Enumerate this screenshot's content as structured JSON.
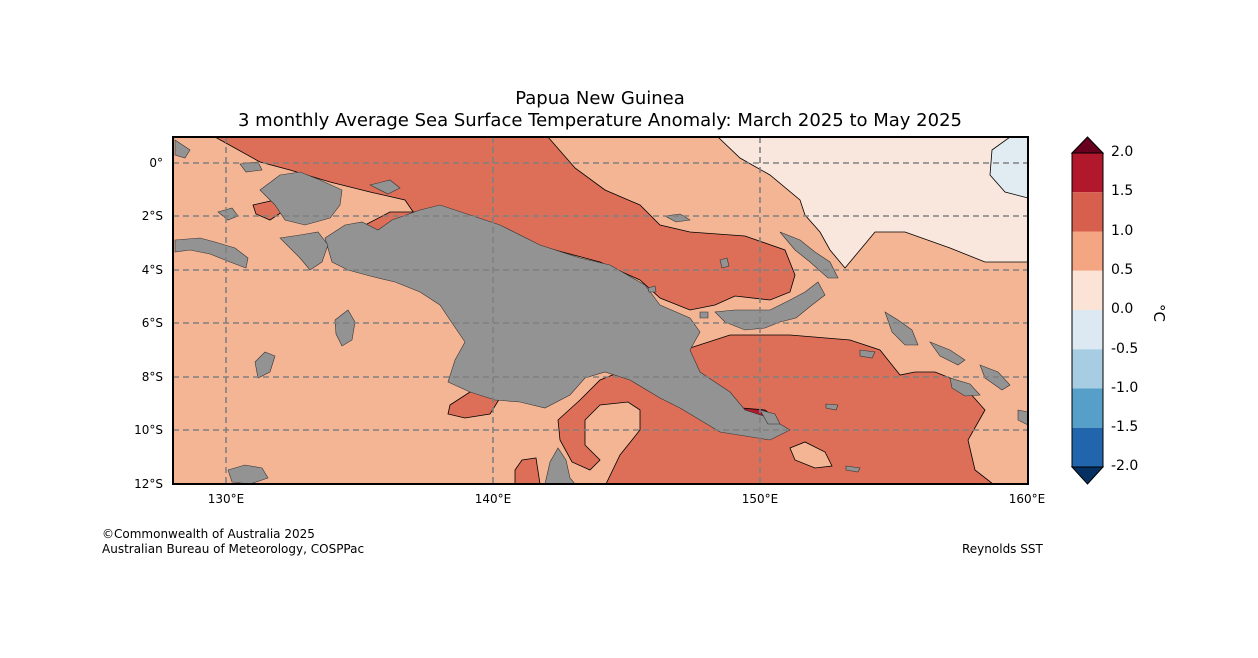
{
  "title": {
    "line1": "Papua New Guinea",
    "line2": "3 monthly Average Sea Surface Temperature Anomaly: March 2025 to May 2025"
  },
  "axes": {
    "latitude_ticks": [
      "0°",
      "2°S",
      "4°S",
      "6°S",
      "8°S",
      "10°S",
      "12°S"
    ],
    "longitude_ticks": [
      "130°E",
      "140°E",
      "150°E",
      "160°E"
    ]
  },
  "colorbar": {
    "unit": "°C",
    "ticks": [
      "2.0",
      "1.5",
      "1.0",
      "0.5",
      "0.0",
      "-0.5",
      "-1.0",
      "-1.5",
      "-2.0"
    ],
    "colors": {
      "above_2_0": "#67001f",
      "1_5_to_2_0": "#b2182b",
      "1_0_to_1_5": "#d6604d",
      "0_5_to_1_0": "#f4a582",
      "0_0_to_0_5": "#fbe3d6",
      "m0_5_to_0_0": "#dce9f2",
      "m1_0_to_m0_5": "#a6cde2",
      "m1_5_to_m1_0": "#569fc9",
      "m2_0_to_m1_5": "#2166ac",
      "below_m2_0": "#053061"
    }
  },
  "map_colors": {
    "land": "#939393",
    "anom_0_5_to_1_0": "#f4b595",
    "anom_1_0_to_1_5": "#dd6f59",
    "anom_1_5_to_2_0": "#b2182b",
    "anom_0_0_to_0_5": "#f9e6dc",
    "anom_m0_5_to_0_0": "#e1ebf2",
    "grid": "#808080"
  },
  "footer": {
    "copyright": "©Commonwealth of Australia 2025",
    "agency": "Australian Bureau of Meteorology, COSPPac",
    "source": "Reynolds SST"
  }
}
